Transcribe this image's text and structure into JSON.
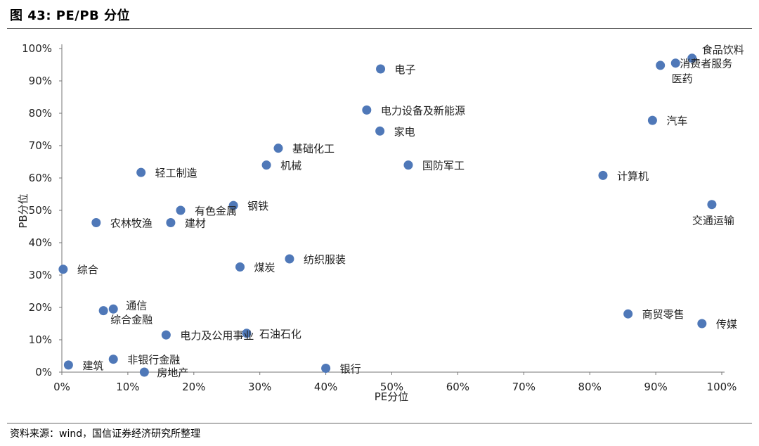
{
  "figure": {
    "title": "图 43: PE/PB 分位",
    "source": "资料来源：wind，国信证券经济研究所整理"
  },
  "chart_data": {
    "type": "scatter",
    "xlabel": "PE分位",
    "ylabel": "PB分位",
    "xlim": [
      0,
      1
    ],
    "ylim": [
      0,
      1
    ],
    "xticks": [
      "0%",
      "10%",
      "20%",
      "30%",
      "40%",
      "50%",
      "60%",
      "70%",
      "80%",
      "90%",
      "100%"
    ],
    "yticks": [
      "0%",
      "10%",
      "20%",
      "30%",
      "40%",
      "50%",
      "60%",
      "70%",
      "80%",
      "90%",
      "100%"
    ],
    "grid": false,
    "marker_color": "#4F78B8",
    "points": [
      {
        "label": "食品饮料",
        "x": 0.955,
        "y": 0.97
      },
      {
        "label": "消费者服务",
        "x": 0.93,
        "y": 0.955
      },
      {
        "label": "医药",
        "x": 0.907,
        "y": 0.948
      },
      {
        "label": "电子",
        "x": 0.483,
        "y": 0.937
      },
      {
        "label": "电力设备及新能源",
        "x": 0.462,
        "y": 0.81
      },
      {
        "label": "汽车",
        "x": 0.895,
        "y": 0.778
      },
      {
        "label": "家电",
        "x": 0.482,
        "y": 0.745
      },
      {
        "label": "基础化工",
        "x": 0.328,
        "y": 0.692
      },
      {
        "label": "机械",
        "x": 0.31,
        "y": 0.64
      },
      {
        "label": "国防军工",
        "x": 0.525,
        "y": 0.64
      },
      {
        "label": "轻工制造",
        "x": 0.12,
        "y": 0.617
      },
      {
        "label": "计算机",
        "x": 0.82,
        "y": 0.608
      },
      {
        "label": "交通运输",
        "x": 0.985,
        "y": 0.518
      },
      {
        "label": "钢铁",
        "x": 0.26,
        "y": 0.515
      },
      {
        "label": "有色金属",
        "x": 0.18,
        "y": 0.5
      },
      {
        "label": "农林牧渔",
        "x": 0.052,
        "y": 0.462
      },
      {
        "label": "建材",
        "x": 0.165,
        "y": 0.462
      },
      {
        "label": "纺织服装",
        "x": 0.345,
        "y": 0.35
      },
      {
        "label": "煤炭",
        "x": 0.27,
        "y": 0.325
      },
      {
        "label": "综合",
        "x": 0.002,
        "y": 0.318
      },
      {
        "label": "通信",
        "x": 0.078,
        "y": 0.195
      },
      {
        "label": "综合金融",
        "x": 0.063,
        "y": 0.19
      },
      {
        "label": "商贸零售",
        "x": 0.858,
        "y": 0.18
      },
      {
        "label": "传媒",
        "x": 0.97,
        "y": 0.15
      },
      {
        "label": "石油石化",
        "x": 0.28,
        "y": 0.12
      },
      {
        "label": "电力及公用事业",
        "x": 0.158,
        "y": 0.115
      },
      {
        "label": "非银行金融",
        "x": 0.078,
        "y": 0.04
      },
      {
        "label": "建筑",
        "x": 0.01,
        "y": 0.022
      },
      {
        "label": "银行",
        "x": 0.4,
        "y": 0.012
      },
      {
        "label": "房地产",
        "x": 0.125,
        "y": 0.0
      }
    ]
  }
}
